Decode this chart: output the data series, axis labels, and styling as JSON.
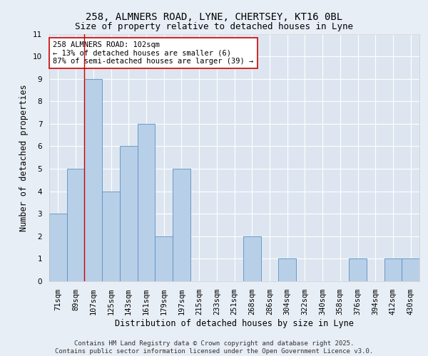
{
  "title1": "258, ALMNERS ROAD, LYNE, CHERTSEY, KT16 0BL",
  "title2": "Size of property relative to detached houses in Lyne",
  "xlabel": "Distribution of detached houses by size in Lyne",
  "ylabel": "Number of detached properties",
  "categories": [
    "71sqm",
    "89sqm",
    "107sqm",
    "125sqm",
    "143sqm",
    "161sqm",
    "179sqm",
    "197sqm",
    "215sqm",
    "233sqm",
    "251sqm",
    "268sqm",
    "286sqm",
    "304sqm",
    "322sqm",
    "340sqm",
    "358sqm",
    "376sqm",
    "394sqm",
    "412sqm",
    "430sqm"
  ],
  "values": [
    3,
    5,
    9,
    4,
    6,
    7,
    2,
    5,
    0,
    0,
    0,
    2,
    0,
    1,
    0,
    0,
    0,
    1,
    0,
    1,
    1
  ],
  "bar_color": "#b8cfe8",
  "bar_edge_color": "#5a8fc0",
  "vline_color": "#cc0000",
  "vline_pos": 1.5,
  "annotation_text": "258 ALMNERS ROAD: 102sqm\n← 13% of detached houses are smaller (6)\n87% of semi-detached houses are larger (39) →",
  "annotation_box_color": "#ffffff",
  "annotation_box_edge": "#cc0000",
  "ylim": [
    0,
    11
  ],
  "yticks": [
    0,
    1,
    2,
    3,
    4,
    5,
    6,
    7,
    8,
    9,
    10,
    11
  ],
  "bg_color": "#dde6f0",
  "fig_bg_color": "#e8eef5",
  "footer": "Contains HM Land Registry data © Crown copyright and database right 2025.\nContains public sector information licensed under the Open Government Licence v3.0.",
  "grid_color": "#ffffff",
  "title_fontsize": 10,
  "title2_fontsize": 9,
  "axis_label_fontsize": 8.5,
  "tick_fontsize": 7.5,
  "annotation_fontsize": 7.5,
  "footer_fontsize": 6.5
}
